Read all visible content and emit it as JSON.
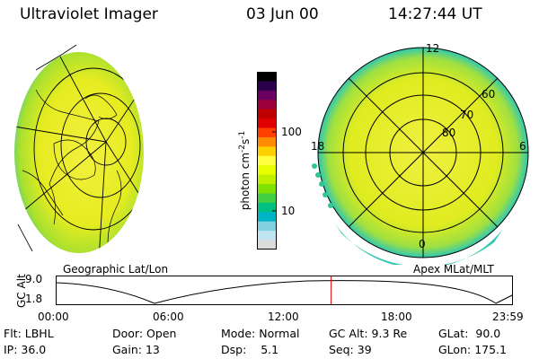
{
  "header": {
    "instrument": "Ultraviolet Imager",
    "date": "03 Jun 00",
    "time": "14:27:44 UT"
  },
  "left_panel": {
    "label": "Geographic Lat/Lon"
  },
  "colorbar": {
    "unit_label": "photon cm",
    "unit_sup1": "-2",
    "unit_s": "s",
    "unit_sup2": "-1",
    "ticks": [
      "100",
      "10"
    ],
    "colors": [
      "#000000",
      "#2a004a",
      "#6a0060",
      "#9b003a",
      "#c00000",
      "#e00000",
      "#ff4000",
      "#ff8c00",
      "#ffd000",
      "#ffff40",
      "#e8ff00",
      "#c0f000",
      "#80e000",
      "#40d040",
      "#00c080",
      "#00b4c8",
      "#80d0e0",
      "#c0e4f0",
      "#dcdcdc"
    ]
  },
  "right_panel": {
    "label": "Apex MLat/MLT",
    "mlt_labels": {
      "top": "12",
      "left": "18",
      "right": "6",
      "bottom": "0"
    },
    "lat_labels": [
      "60",
      "70",
      "80"
    ]
  },
  "timeline": {
    "axis_label": "GC Alt",
    "y_ticks": [
      "9.0",
      "1.8"
    ],
    "x_ticks": [
      "00:00",
      "06:00",
      "12:00",
      "18:00",
      "23:59"
    ],
    "current_time_fraction": 0.6026
  },
  "info": {
    "flt_label": "Flt:",
    "flt_value": "LBHL",
    "door_label": "Door:",
    "door_value": "Open",
    "mode_label": "Mode:",
    "mode_value": "Normal",
    "gcalt_label": "GC Alt:",
    "gcalt_value": "9.3 Re",
    "glat_label": "GLat:",
    "glat_value": "90.0",
    "ip_label": "IP:",
    "ip_value": "36.0",
    "gain_label": "Gain:",
    "gain_value": "13",
    "dsp_label": "Dsp:",
    "dsp_value": "5.1",
    "seq_label": "Seq:",
    "seq_value": "39",
    "glon_label": "GLon:",
    "glon_value": "175.1"
  }
}
